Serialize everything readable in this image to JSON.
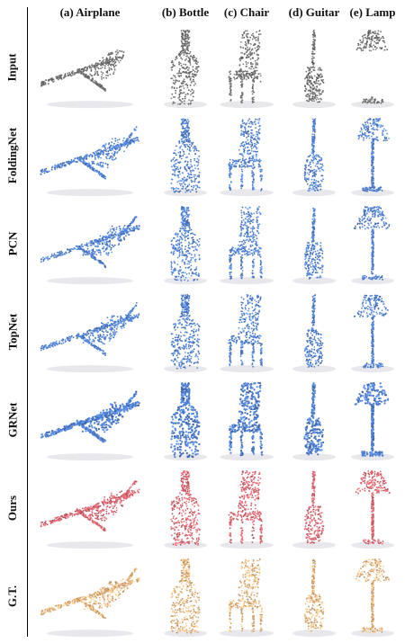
{
  "figure": {
    "columns": [
      "(a) Airplane",
      "(b) Bottle",
      "(c) Chair",
      "(d) Guitar",
      "(e) Lamp"
    ],
    "rows": [
      {
        "label": "Input",
        "style": "gray"
      },
      {
        "label": "FoldingNet",
        "style": "blue"
      },
      {
        "label": "PCN",
        "style": "blue"
      },
      {
        "label": "TopNet",
        "style": "blue"
      },
      {
        "label": "GRNet",
        "style": "blue"
      },
      {
        "label": "Ours",
        "style": "red"
      },
      {
        "label": "G.T.",
        "style": "orange"
      }
    ],
    "colors": {
      "gray": "#6e6e6e",
      "blue": "#4f7fd0",
      "red": "#d9646e",
      "orange": "#e6b27a"
    }
  }
}
